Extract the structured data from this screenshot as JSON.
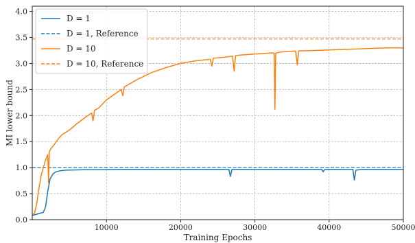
{
  "chart_data": {
    "type": "line",
    "xlabel": "Training Epochs",
    "ylabel": "MI lower bound",
    "xlim": [
      0,
      50000
    ],
    "ylim": [
      0,
      4.1
    ],
    "x_ticks": [
      10000,
      20000,
      30000,
      40000,
      50000
    ],
    "y_ticks": [
      0.0,
      0.5,
      1.0,
      1.5,
      2.0,
      2.5,
      3.0,
      3.5,
      4.0
    ],
    "grid": true,
    "legend_position": "top-left",
    "series": [
      {
        "name": "D = 1",
        "color": "#1f77b4",
        "style": "solid",
        "x": [
          0,
          500,
          1000,
          1500,
          1800,
          2100,
          2400,
          2800,
          3200,
          3800,
          4500,
          5500,
          7000,
          9000,
          12000,
          16000,
          20000,
          24000,
          26500,
          26700,
          26900,
          30000,
          35000,
          39000,
          39200,
          39400,
          42000,
          43200,
          43400,
          43600,
          44500,
          47000,
          50000
        ],
        "values": [
          0.08,
          0.1,
          0.12,
          0.14,
          0.25,
          0.55,
          0.78,
          0.88,
          0.92,
          0.94,
          0.95,
          0.955,
          0.96,
          0.96,
          0.965,
          0.965,
          0.965,
          0.965,
          0.965,
          0.83,
          0.965,
          0.965,
          0.965,
          0.965,
          0.92,
          0.965,
          0.965,
          0.965,
          0.76,
          0.95,
          0.965,
          0.965,
          0.965
        ]
      },
      {
        "name": "D = 1, Reference",
        "color": "#1f77b4",
        "style": "dashed",
        "x": [
          0,
          50000
        ],
        "values": [
          1.0,
          1.0
        ]
      },
      {
        "name": "D = 10",
        "color": "#ff7f0e",
        "style": "solid",
        "x": [
          0,
          300,
          600,
          900,
          1200,
          1500,
          1800,
          2100,
          2200,
          2300,
          2500,
          3000,
          3500,
          4000,
          5000,
          6000,
          7000,
          8000,
          8200,
          8400,
          9000,
          10000,
          11000,
          12000,
          12200,
          12400,
          14000,
          16000,
          18000,
          20000,
          22000,
          24000,
          24200,
          24400,
          26000,
          27000,
          27200,
          27400,
          28000,
          30000,
          32000,
          32600,
          32700,
          32800,
          33500,
          35500,
          35700,
          35900,
          38000,
          40000,
          42000,
          44000,
          46000,
          48000,
          49000,
          50000
        ],
        "values": [
          0.1,
          0.12,
          0.3,
          0.6,
          0.85,
          1.0,
          1.15,
          1.25,
          0.7,
          1.3,
          1.36,
          1.45,
          1.55,
          1.63,
          1.72,
          1.84,
          1.95,
          2.05,
          1.9,
          2.1,
          2.15,
          2.3,
          2.4,
          2.5,
          2.38,
          2.55,
          2.68,
          2.82,
          2.92,
          3.0,
          3.05,
          3.08,
          2.95,
          3.1,
          3.12,
          3.14,
          2.85,
          3.15,
          3.16,
          3.18,
          3.2,
          3.2,
          2.12,
          3.2,
          3.22,
          3.24,
          2.97,
          3.24,
          3.25,
          3.26,
          3.27,
          3.28,
          3.29,
          3.3,
          3.3,
          3.3
        ]
      },
      {
        "name": "D = 10, Reference",
        "color": "#ff7f0e",
        "style": "dashed",
        "x": [
          0,
          50000
        ],
        "values": [
          3.47,
          3.47
        ]
      }
    ]
  }
}
